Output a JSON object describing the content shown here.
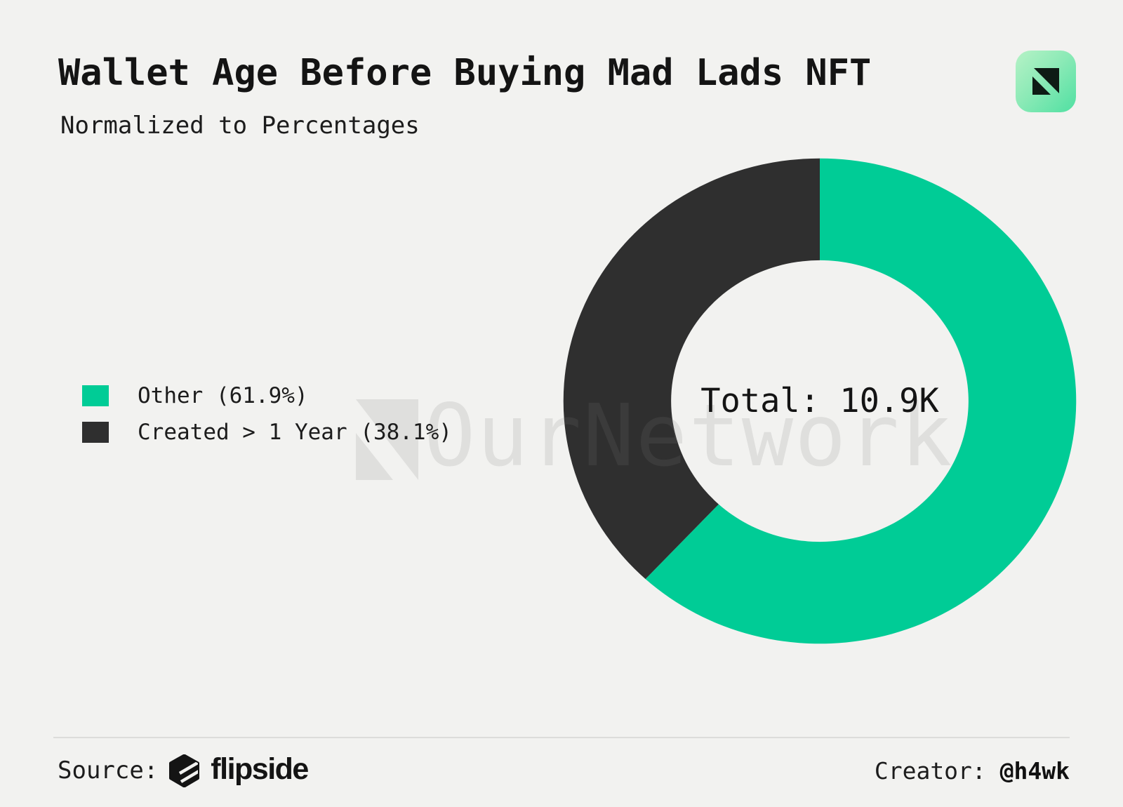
{
  "header": {
    "title": "Wallet Age Before Buying Mad Lads NFT",
    "subtitle": "Normalized to Percentages"
  },
  "chart_data": {
    "type": "pie",
    "title": "Wallet Age Before Buying Mad Lads NFT",
    "subtitle": "Normalized to Percentages",
    "categories": [
      "Other",
      "Created > 1 Year"
    ],
    "values": [
      61.9,
      38.1
    ],
    "units": "percent of buyers",
    "colors": [
      "#00cc96",
      "#2f2f2f"
    ],
    "hole_ratio": 0.58,
    "start_angle_deg": 0,
    "direction": "clockwise",
    "center_label": "Total: 10.9K",
    "total": "10.9K",
    "legend_position": "middle-left",
    "legend": [
      {
        "label": "Other (61.9%)",
        "color": "#00cc96"
      },
      {
        "label": "Created > 1 Year (38.1%)",
        "color": "#2f2f2f"
      }
    ]
  },
  "watermark": {
    "text": "OurNetwork",
    "logo": "ournetwork-logo"
  },
  "footer": {
    "source_label": "Source:",
    "source_name": "flipside",
    "creator_label": "Creator: ",
    "creator_handle": "@h4wk"
  },
  "branding": {
    "icon": "ournetwork-icon",
    "accent_green": "#00cc96",
    "slice_dark": "#2f2f2f",
    "background": "#f2f2f0",
    "icon_gradient": [
      "#b6f2c6",
      "#50e0a2"
    ]
  }
}
